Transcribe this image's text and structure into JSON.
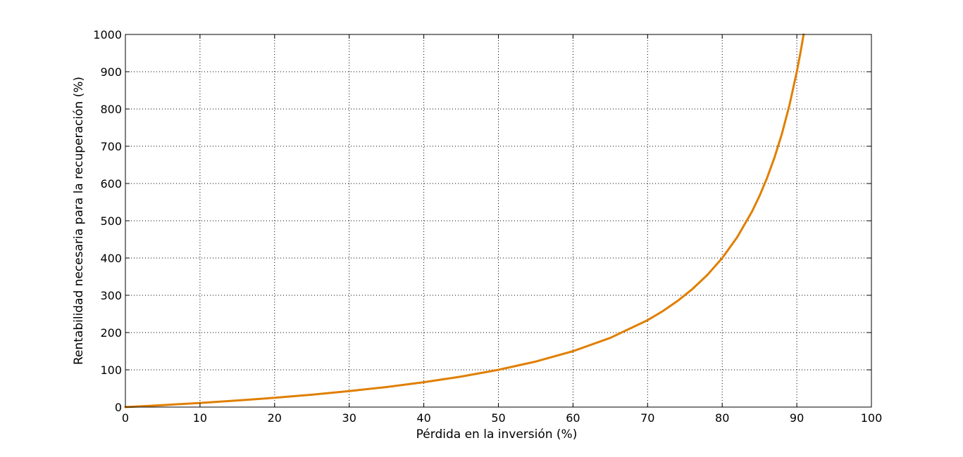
{
  "chart_data": {
    "type": "line",
    "title": "",
    "xlabel": "Pérdida en la inversión (%)",
    "ylabel": "Rentabilidad necesaria para la recuperación (%)",
    "xlim": [
      0,
      100
    ],
    "ylim": [
      0,
      1000
    ],
    "xticks": [
      "0",
      "10",
      "20",
      "30",
      "40",
      "50",
      "60",
      "70",
      "80",
      "90",
      "100"
    ],
    "yticks": [
      "0",
      "100",
      "200",
      "300",
      "400",
      "500",
      "600",
      "700",
      "800",
      "900",
      "1000"
    ],
    "grid": true,
    "legend": "none",
    "series": [
      {
        "color": "#E07F00",
        "x": [
          0,
          5,
          10,
          15,
          20,
          25,
          30,
          35,
          40,
          45,
          50,
          55,
          60,
          65,
          70,
          72,
          74,
          76,
          78,
          80,
          82,
          84,
          85,
          86,
          87,
          88,
          89,
          90,
          90.5,
          90.91
        ],
        "y": [
          0,
          5.3,
          11.1,
          17.6,
          25,
          33.3,
          42.9,
          53.8,
          66.7,
          81.8,
          100,
          122.2,
          150,
          185.7,
          233.3,
          257.1,
          284.6,
          316.7,
          354.5,
          400,
          455.6,
          525,
          566.7,
          614.3,
          669.2,
          733.3,
          809.1,
          900,
          952.6,
          1000
        ]
      }
    ]
  }
}
